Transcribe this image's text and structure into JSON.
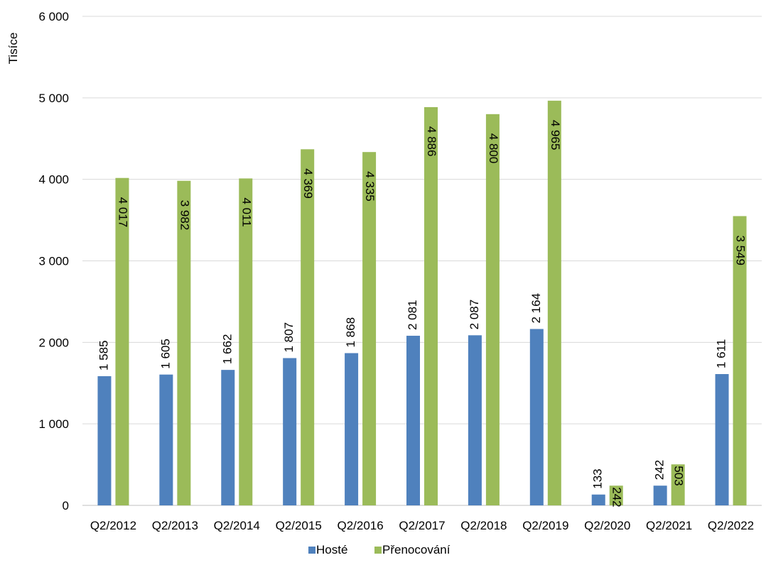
{
  "chart_data": {
    "type": "bar",
    "title": "",
    "ylabel": "Tisíce",
    "xlabel": "",
    "ylim": [
      0,
      6000
    ],
    "yticks": [
      0,
      1000,
      2000,
      3000,
      4000,
      5000,
      6000
    ],
    "ytick_labels": [
      "0",
      "1 000",
      "2 000",
      "3 000",
      "4 000",
      "5 000",
      "6 000"
    ],
    "grid": true,
    "legend": "bottom",
    "categories": [
      "Q2/2012",
      "Q2/2013",
      "Q2/2014",
      "Q2/2015",
      "Q2/2016",
      "Q2/2017",
      "Q2/2018",
      "Q2/2019",
      "Q2/2020",
      "Q2/2021",
      "Q2/2022"
    ],
    "series": [
      {
        "name": "Hosté",
        "color": "#4f81bd",
        "values": [
          1585,
          1605,
          1662,
          1807,
          1868,
          2081,
          2087,
          2164,
          133,
          242,
          1611
        ],
        "labels": [
          "1 585",
          "1 605",
          "1 662",
          "1 807",
          "1 868",
          "2 081",
          "2 087",
          "2 164",
          "133",
          "242",
          "1 611"
        ]
      },
      {
        "name": "Přenocování",
        "color": "#9bbb59",
        "values": [
          4017,
          3982,
          4011,
          4369,
          4335,
          4886,
          4800,
          4965,
          242,
          503,
          3549
        ],
        "labels": [
          "4 017",
          "3 982",
          "4 011",
          "4 369",
          "4 335",
          "4 886",
          "4 800",
          "4 965",
          "242",
          "503",
          "3 549"
        ]
      }
    ]
  }
}
